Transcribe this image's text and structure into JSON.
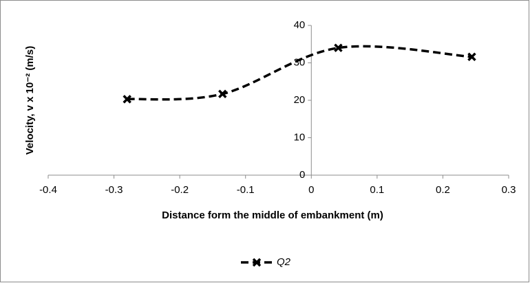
{
  "chart_data": {
    "type": "scatter",
    "xlabel": "Distance form the middle of embankment (m)",
    "ylabel": "Velocity, v x 10⁻² (m/s)",
    "series": [
      {
        "name": "Q2",
        "color": "#000000",
        "x": [
          -0.28,
          -0.135,
          0.041,
          0.244
        ],
        "values": [
          20.3,
          21.7,
          34.0,
          31.6
        ]
      }
    ],
    "xlim": [
      -0.4,
      0.3
    ],
    "xticks": [
      -0.4,
      -0.3,
      -0.2,
      -0.1,
      0,
      0.1,
      0.2,
      0.3
    ],
    "ylim": [
      0,
      40
    ],
    "yticks": [
      0,
      10,
      20,
      30,
      40
    ],
    "smooth": true,
    "dashed": true,
    "legend": "bottom"
  }
}
